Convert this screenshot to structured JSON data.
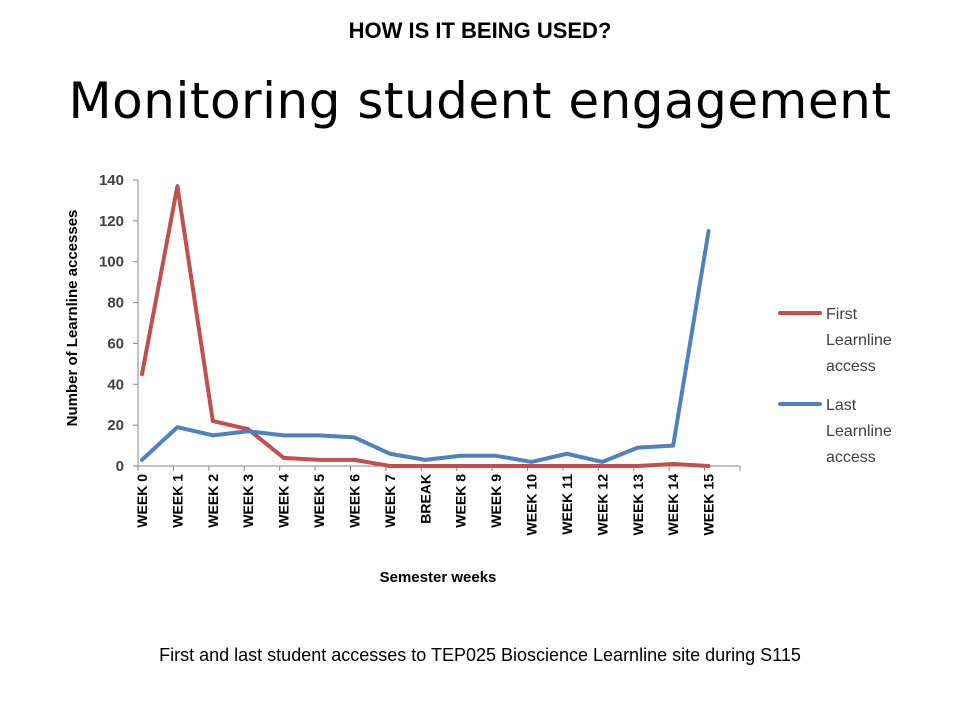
{
  "header": {
    "kicker": "HOW IS IT BEING USED?",
    "title": "Monitoring student engagement"
  },
  "caption": "First and last student accesses to TEP025 Bioscience Learnline site during S115",
  "chart_data": {
    "type": "line",
    "xlabel": "Semester weeks",
    "ylabel": "Number of Learnline accesses",
    "ylim": [
      0,
      140
    ],
    "yticks": [
      0,
      20,
      40,
      60,
      80,
      100,
      120,
      140
    ],
    "grid": false,
    "legend_position": "right",
    "categories": [
      "WEEK 0",
      "WEEK 1",
      "WEEK 2",
      "WEEK 3",
      "WEEK 4",
      "WEEK 5",
      "WEEK 6",
      "WEEK 7",
      "BREAK",
      "WEEK 8",
      "WEEK 9",
      "WEEK 10",
      "WEEK 11",
      "WEEK 12",
      "WEEK 13",
      "WEEK 14",
      "WEEK 15"
    ],
    "series": [
      {
        "name": "First Learnline access",
        "legend_lines": [
          "First",
          "Learnline",
          "access"
        ],
        "color": "#C0504D",
        "values": [
          45,
          137,
          22,
          18,
          4,
          3,
          3,
          0,
          0,
          0,
          0,
          0,
          0,
          0,
          0,
          1,
          0
        ]
      },
      {
        "name": "Last Learnline access",
        "legend_lines": [
          "Last",
          "Learnline",
          "access"
        ],
        "color": "#4F81BD",
        "values": [
          3,
          19,
          15,
          17,
          15,
          15,
          14,
          6,
          3,
          5,
          5,
          2,
          6,
          2,
          9,
          10,
          115
        ]
      }
    ]
  }
}
